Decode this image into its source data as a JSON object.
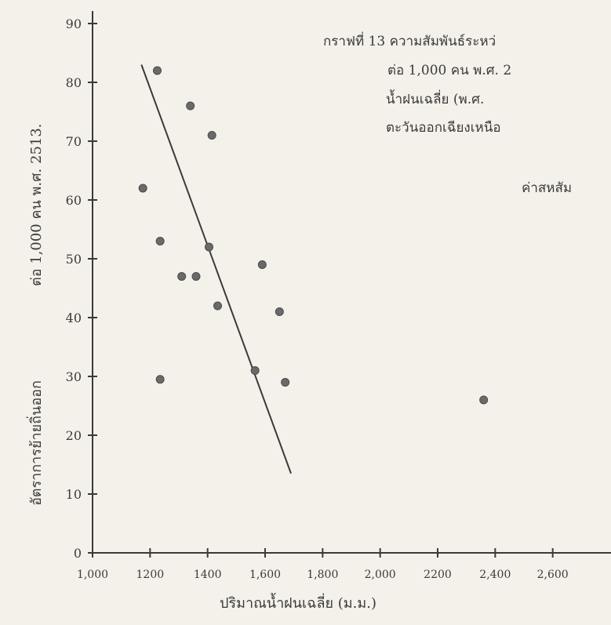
{
  "chart_data": {
    "type": "scatter",
    "title_lines": [
      "กราฟที่ 13 ความสัมพันธ์ระหว่",
      "ต่อ 1,000 คน พ.ศ. 2",
      "น้ำฝนเฉลี่ย (พ.ศ.",
      "ตะวันออกเฉียงเหนือ",
      "ค่าสหสัม"
    ],
    "xlabel": "ปริมาณน้ำฝนเฉลี่ย (ม.ม.)",
    "ylabel_lines": [
      "อัตราการย้ายถิ่นออก",
      "ต่อ 1,000 คน พ.ศ. 2513."
    ],
    "xlim": [
      1000,
      2800
    ],
    "ylim": [
      0,
      90
    ],
    "x_ticks": [
      1000,
      1200,
      1400,
      1600,
      1800,
      2000,
      2200,
      2400,
      2600
    ],
    "x_tick_labels": [
      "1,000",
      "1200",
      "1400",
      "1,600",
      "1,800",
      "2,000",
      "2200",
      "2,400",
      "2,600"
    ],
    "y_ticks": [
      0,
      10,
      20,
      30,
      40,
      50,
      60,
      70,
      80,
      90
    ],
    "y_tick_labels": [
      "0",
      "10",
      "20",
      "30",
      "40",
      "50",
      "60",
      "70",
      "80",
      "90"
    ],
    "points": [
      {
        "x": 1225,
        "y": 82
      },
      {
        "x": 1175,
        "y": 62
      },
      {
        "x": 1340,
        "y": 76
      },
      {
        "x": 1415,
        "y": 71
      },
      {
        "x": 1235,
        "y": 53
      },
      {
        "x": 1405,
        "y": 52
      },
      {
        "x": 1310,
        "y": 47
      },
      {
        "x": 1360,
        "y": 47
      },
      {
        "x": 1590,
        "y": 49
      },
      {
        "x": 1435,
        "y": 42
      },
      {
        "x": 1650,
        "y": 41
      },
      {
        "x": 1565,
        "y": 31
      },
      {
        "x": 1235,
        "y": 29.5
      },
      {
        "x": 1670,
        "y": 29
      },
      {
        "x": 2360,
        "y": 26
      }
    ],
    "trendline": {
      "x1": 1170,
      "y1": 83,
      "x2": 1690,
      "y2": 13.5
    },
    "grid": false,
    "legend": "none",
    "colors": {
      "ink": "#3a3a3a",
      "point": "#6a6a6a",
      "paper": "#f4f1ea"
    }
  }
}
